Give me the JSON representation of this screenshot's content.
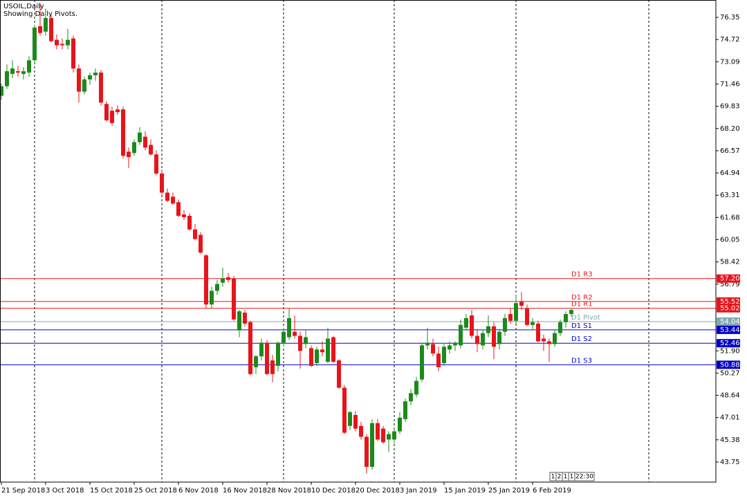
{
  "chart_data": {
    "type": "candlestick",
    "title": "USOIL,Daily",
    "subtitle": "Showing Daily Pivots.",
    "up_color": "#1b8a1b",
    "down_color": "#e8141a",
    "categories": [
      "21 Sep 2018",
      null,
      null,
      null,
      null,
      null,
      null,
      null,
      "3 Oct 2018",
      null,
      null,
      null,
      null,
      null,
      null,
      null,
      "15 Oct 2018",
      null,
      null,
      null,
      null,
      null,
      null,
      null,
      "25 Oct 2018",
      null,
      null,
      null,
      null,
      null,
      null,
      null,
      "6 Nov 2018",
      null,
      null,
      null,
      null,
      null,
      null,
      null,
      "16 Nov 2018",
      null,
      null,
      null,
      null,
      null,
      null,
      null,
      "28 Nov 2018",
      null,
      null,
      null,
      null,
      null,
      null,
      null,
      "10 Dec 2018",
      null,
      null,
      null,
      null,
      null,
      null,
      null,
      "20 Dec 2018",
      null,
      null,
      null,
      null,
      null,
      null,
      null,
      "3 Jan 2019",
      null,
      null,
      null,
      null,
      null,
      null,
      null,
      "15 Jan 2019",
      null,
      null,
      null,
      null,
      null,
      null,
      null,
      "25 Jan 2019",
      null,
      null,
      null,
      null,
      null,
      null,
      null,
      "6 Feb 2019",
      null,
      null,
      null,
      null,
      null,
      null,
      null
    ],
    "ohlc": [
      [
        70.6,
        71.5,
        70.3,
        71.3
      ],
      [
        71.3,
        72.9,
        71.1,
        72.4
      ],
      [
        72.2,
        73.2,
        71.9,
        72.6
      ],
      [
        72.4,
        72.8,
        72.0,
        72.3
      ],
      [
        72.2,
        72.7,
        71.8,
        72.4
      ],
      [
        72.3,
        73.5,
        72.0,
        73.2
      ],
      [
        73.2,
        75.8,
        73.0,
        75.6
      ],
      [
        75.7,
        77.4,
        75.0,
        75.2
      ],
      [
        75.3,
        77.0,
        75.0,
        76.3
      ],
      [
        76.3,
        76.5,
        74.5,
        74.6
      ],
      [
        74.7,
        75.1,
        74.0,
        74.3
      ],
      [
        74.4,
        74.8,
        74.0,
        74.3
      ],
      [
        74.3,
        75.5,
        74.0,
        74.7
      ],
      [
        74.8,
        75.0,
        72.3,
        72.6
      ],
      [
        72.6,
        72.9,
        70.1,
        70.9
      ],
      [
        70.9,
        72.0,
        70.7,
        71.8
      ],
      [
        71.8,
        72.3,
        71.4,
        72.1
      ],
      [
        72.1,
        72.6,
        71.7,
        72.3
      ],
      [
        72.3,
        72.5,
        69.9,
        70.1
      ],
      [
        70.0,
        70.2,
        68.7,
        68.8
      ],
      [
        69.5,
        69.8,
        68.4,
        68.6
      ],
      [
        69.6,
        69.9,
        69.2,
        69.4
      ],
      [
        69.6,
        69.8,
        66.0,
        66.2
      ],
      [
        66.5,
        66.8,
        65.3,
        66.1
      ],
      [
        66.4,
        67.4,
        66.2,
        67.2
      ],
      [
        67.2,
        68.3,
        67.0,
        67.9
      ],
      [
        67.6,
        68.0,
        66.6,
        66.8
      ],
      [
        67.0,
        67.4,
        66.2,
        66.3
      ],
      [
        66.3,
        66.6,
        64.8,
        64.9
      ],
      [
        64.9,
        65.2,
        63.3,
        63.5
      ],
      [
        63.5,
        63.8,
        62.8,
        62.9
      ],
      [
        63.2,
        63.5,
        62.6,
        62.7
      ],
      [
        62.8,
        63.0,
        61.7,
        61.8
      ],
      [
        61.9,
        62.2,
        61.5,
        61.7
      ],
      [
        61.8,
        62.0,
        60.7,
        60.8
      ],
      [
        60.8,
        61.2,
        60.0,
        60.1
      ],
      [
        60.4,
        60.6,
        59.0,
        59.1
      ],
      [
        58.9,
        59.0,
        55.0,
        55.3
      ],
      [
        55.3,
        56.6,
        55.0,
        56.3
      ],
      [
        56.3,
        57.1,
        56.0,
        56.8
      ],
      [
        56.9,
        58.0,
        56.6,
        57.2
      ],
      [
        57.3,
        57.6,
        56.9,
        57.1
      ],
      [
        57.2,
        57.4,
        54.1,
        54.2
      ],
      [
        53.4,
        54.9,
        52.9,
        54.8
      ],
      [
        54.7,
        54.9,
        53.7,
        53.9
      ],
      [
        54.0,
        54.1,
        50.1,
        50.2
      ],
      [
        50.7,
        51.6,
        50.2,
        51.5
      ],
      [
        51.5,
        52.8,
        51.2,
        52.5
      ],
      [
        52.5,
        52.7,
        50.1,
        50.2
      ],
      [
        51.2,
        51.6,
        49.6,
        50.2
      ],
      [
        50.8,
        52.6,
        50.4,
        52.5
      ],
      [
        52.5,
        53.6,
        52.2,
        53.3
      ],
      [
        52.9,
        55.0,
        52.7,
        54.3
      ],
      [
        53.3,
        54.5,
        52.8,
        53.0
      ],
      [
        53.0,
        53.3,
        50.6,
        51.9
      ],
      [
        52.4,
        53.4,
        52.1,
        52.9
      ],
      [
        52.1,
        52.3,
        50.7,
        50.8
      ],
      [
        51.0,
        52.2,
        50.8,
        52.0
      ],
      [
        52.0,
        52.6,
        51.5,
        51.8
      ],
      [
        51.1,
        53.6,
        51.0,
        52.8
      ],
      [
        52.9,
        53.0,
        51.0,
        51.1
      ],
      [
        51.2,
        51.3,
        49.1,
        49.2
      ],
      [
        49.2,
        49.4,
        45.8,
        45.9
      ],
      [
        46.4,
        47.5,
        46.1,
        47.4
      ],
      [
        47.2,
        47.5,
        46.0,
        46.2
      ],
      [
        46.4,
        46.7,
        45.4,
        45.6
      ],
      [
        45.6,
        45.8,
        42.9,
        43.4
      ],
      [
        43.4,
        46.9,
        43.2,
        46.6
      ],
      [
        46.6,
        46.9,
        45.3,
        45.4
      ],
      [
        46.2,
        46.4,
        45.1,
        45.2
      ],
      [
        45.4,
        46.0,
        44.5,
        45.8
      ],
      [
        45.4,
        46.2,
        45.1,
        46.0
      ],
      [
        46.0,
        47.4,
        45.8,
        47.0
      ],
      [
        46.9,
        48.4,
        46.7,
        48.2
      ],
      [
        48.2,
        49.1,
        47.9,
        48.8
      ],
      [
        48.7,
        50.0,
        48.5,
        49.7
      ],
      [
        49.8,
        52.5,
        49.6,
        52.3
      ],
      [
        52.3,
        53.6,
        52.0,
        52.5
      ],
      [
        52.4,
        52.8,
        51.5,
        51.7
      ],
      [
        51.7,
        52.2,
        50.4,
        50.7
      ],
      [
        51.0,
        52.4,
        50.8,
        52.2
      ],
      [
        52.0,
        52.6,
        51.7,
        52.3
      ],
      [
        52.3,
        52.6,
        51.9,
        52.5
      ],
      [
        52.3,
        54.2,
        52.1,
        53.8
      ],
      [
        53.6,
        54.6,
        53.4,
        54.3
      ],
      [
        54.5,
        54.9,
        52.8,
        53.0
      ],
      [
        53.0,
        53.5,
        51.8,
        52.4
      ],
      [
        52.3,
        53.4,
        52.0,
        53.2
      ],
      [
        53.2,
        54.5,
        52.9,
        53.7
      ],
      [
        53.7,
        54.0,
        51.3,
        52.2
      ],
      [
        52.4,
        53.5,
        52.0,
        53.3
      ],
      [
        53.3,
        54.6,
        53.0,
        54.3
      ],
      [
        54.6,
        55.0,
        53.9,
        54.1
      ],
      [
        54.1,
        56.0,
        53.9,
        55.4
      ],
      [
        55.5,
        56.2,
        54.9,
        55.2
      ],
      [
        55.0,
        55.3,
        53.7,
        53.8
      ],
      [
        53.8,
        54.3,
        53.5,
        54.0
      ],
      [
        53.9,
        54.1,
        52.5,
        52.6
      ],
      [
        52.8,
        53.1,
        51.9,
        52.6
      ],
      [
        52.6,
        52.8,
        51.1,
        52.4
      ],
      [
        52.4,
        53.4,
        52.2,
        53.2
      ],
      [
        53.2,
        54.2,
        53.0,
        54.0
      ],
      [
        54.0,
        54.8,
        53.6,
        54.6
      ],
      [
        54.6,
        55.0,
        54.4,
        54.9
      ]
    ],
    "ylim": [
      42.28,
      77.62
    ],
    "yticks": [
      {
        "value": 43.75,
        "label": "43.75"
      },
      {
        "value": 45.38,
        "label": "45.38"
      },
      {
        "value": 47.01,
        "label": "47.01"
      },
      {
        "value": 48.64,
        "label": "48.64"
      },
      {
        "value": 50.27,
        "label": "50.27"
      },
      {
        "value": 51.9,
        "label": "51.90"
      },
      {
        "value": 56.79,
        "label": "56.79"
      },
      {
        "value": 58.42,
        "label": "58.42"
      },
      {
        "value": 60.05,
        "label": "60.05"
      },
      {
        "value": 61.68,
        "label": "61.68"
      },
      {
        "value": 63.31,
        "label": "63.31"
      },
      {
        "value": 64.94,
        "label": "64.94"
      },
      {
        "value": 66.57,
        "label": "66.57"
      },
      {
        "value": 68.2,
        "label": "68.20"
      },
      {
        "value": 69.83,
        "label": "69.83"
      },
      {
        "value": 71.46,
        "label": "71.46"
      },
      {
        "value": 73.09,
        "label": "73.09"
      },
      {
        "value": 74.72,
        "label": "74.72"
      },
      {
        "value": 76.35,
        "label": "76.35"
      }
    ],
    "pivots": {
      "names": [
        "D1 R3",
        "D1 R2",
        "D1 R1",
        "D1 Pivot",
        "D1 S1",
        "D1 S2",
        "D1 S3"
      ],
      "values": [
        57.2,
        55.52,
        55.02,
        54.04,
        53.44,
        52.46,
        50.88
      ],
      "value_labels": [
        "57.20",
        "55.52",
        "55.02",
        "54.04",
        "53.44",
        "52.46",
        "50.88"
      ],
      "colors": [
        "#e8141a",
        "#e8141a",
        "#e8141a",
        "#7fa8b0",
        "#0000c8",
        "#0000c8",
        "#0000c8"
      ]
    },
    "status_boxes": [
      "1",
      "2",
      "1",
      "1",
      "22:30"
    ]
  }
}
